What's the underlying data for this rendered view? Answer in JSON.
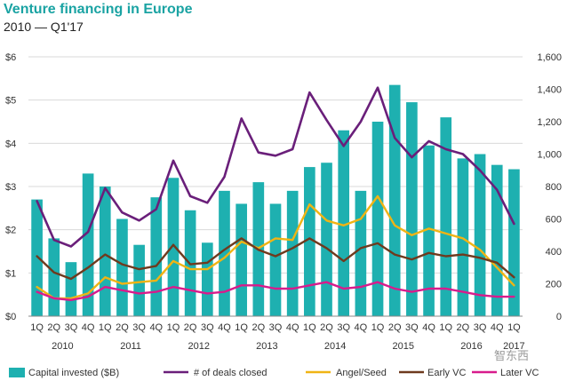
{
  "header": {
    "title": "Venture financing in Europe",
    "subtitle": "2010 — Q1'17"
  },
  "watermark": "智东西",
  "colors": {
    "bars": "#1eb0b0",
    "deals": "#6a1f7a",
    "angel": "#f0b414",
    "early": "#6e3a1e",
    "later": "#d81b8c",
    "grid": "#d9d9d9"
  },
  "chart_data": {
    "type": "bar",
    "title": "Venture financing in Europe",
    "subtitle": "2010 — Q1'17",
    "quarters": [
      "1Q",
      "2Q",
      "3Q",
      "4Q",
      "1Q",
      "2Q",
      "3Q",
      "4Q",
      "1Q",
      "2Q",
      "3Q",
      "4Q",
      "1Q",
      "2Q",
      "3Q",
      "4Q",
      "1Q",
      "2Q",
      "3Q",
      "4Q",
      "1Q",
      "2Q",
      "3Q",
      "4Q",
      "1Q",
      "2Q",
      "3Q",
      "4Q",
      "1Q"
    ],
    "years": [
      {
        "label": "2010",
        "start": 0,
        "end": 3
      },
      {
        "label": "2011",
        "start": 4,
        "end": 7
      },
      {
        "label": "2012",
        "start": 8,
        "end": 11
      },
      {
        "label": "2013",
        "start": 12,
        "end": 15
      },
      {
        "label": "2014",
        "start": 16,
        "end": 19
      },
      {
        "label": "2015",
        "start": 20,
        "end": 23
      },
      {
        "label": "2016",
        "start": 24,
        "end": 27
      },
      {
        "label": "2017",
        "start": 28,
        "end": 28
      }
    ],
    "left_axis": {
      "min": 0,
      "max": 6,
      "ticks": [
        {
          "v": 0,
          "t": "$0"
        },
        {
          "v": 1,
          "t": "$1"
        },
        {
          "v": 2,
          "t": "$2"
        },
        {
          "v": 3,
          "t": "$3"
        },
        {
          "v": 4,
          "t": "$4"
        },
        {
          "v": 5,
          "t": "$5"
        },
        {
          "v": 6,
          "t": "$6"
        }
      ]
    },
    "right_axis": {
      "min": 0,
      "max": 1600,
      "ticks": [
        {
          "v": 0,
          "t": "0"
        },
        {
          "v": 200,
          "t": "200"
        },
        {
          "v": 400,
          "t": "400"
        },
        {
          "v": 600,
          "t": "600"
        },
        {
          "v": 800,
          "t": "800"
        },
        {
          "v": 1000,
          "t": "1,000"
        },
        {
          "v": 1200,
          "t": "1,200"
        },
        {
          "v": 1400,
          "t": "1,400"
        },
        {
          "v": 1600,
          "t": "1,600"
        }
      ]
    },
    "grid": true,
    "legend_position": "bottom",
    "bar_series": {
      "name": "Capital invested ($B)",
      "axis": "left",
      "values": [
        2.7,
        1.8,
        1.25,
        3.3,
        3.0,
        2.25,
        1.65,
        2.75,
        3.2,
        2.45,
        1.7,
        2.9,
        2.6,
        3.1,
        2.6,
        2.9,
        3.45,
        3.55,
        4.3,
        2.9,
        4.5,
        5.35,
        4.95,
        3.95,
        4.6,
        3.65,
        3.75,
        3.5,
        3.4
      ]
    },
    "line_series": [
      {
        "name": "# of deals closed",
        "axis": "right",
        "color_key": "deals",
        "values": [
          710,
          470,
          430,
          520,
          790,
          640,
          590,
          660,
          960,
          740,
          700,
          860,
          1220,
          1010,
          990,
          1030,
          1380,
          1210,
          1050,
          1200,
          1410,
          1100,
          980,
          1080,
          1030,
          1000,
          900,
          780,
          570
        ]
      },
      {
        "name": "Angel/Seed",
        "axis": "right",
        "color_key": "angel",
        "values": [
          180,
          110,
          110,
          140,
          240,
          200,
          210,
          220,
          340,
          290,
          290,
          360,
          460,
          420,
          480,
          470,
          690,
          590,
          560,
          600,
          740,
          560,
          500,
          540,
          510,
          480,
          410,
          300,
          190
        ]
      },
      {
        "name": "Early VC",
        "axis": "right",
        "color_key": "early",
        "values": [
          370,
          270,
          230,
          300,
          380,
          320,
          290,
          310,
          440,
          320,
          330,
          410,
          480,
          410,
          370,
          420,
          480,
          420,
          340,
          420,
          450,
          380,
          350,
          390,
          370,
          380,
          360,
          330,
          240
        ]
      },
      {
        "name": "Later VC",
        "axis": "right",
        "color_key": "later",
        "values": [
          150,
          110,
          100,
          120,
          180,
          160,
          140,
          150,
          180,
          160,
          140,
          150,
          190,
          190,
          170,
          170,
          190,
          210,
          170,
          180,
          210,
          170,
          150,
          170,
          170,
          150,
          130,
          120,
          120
        ]
      }
    ]
  }
}
